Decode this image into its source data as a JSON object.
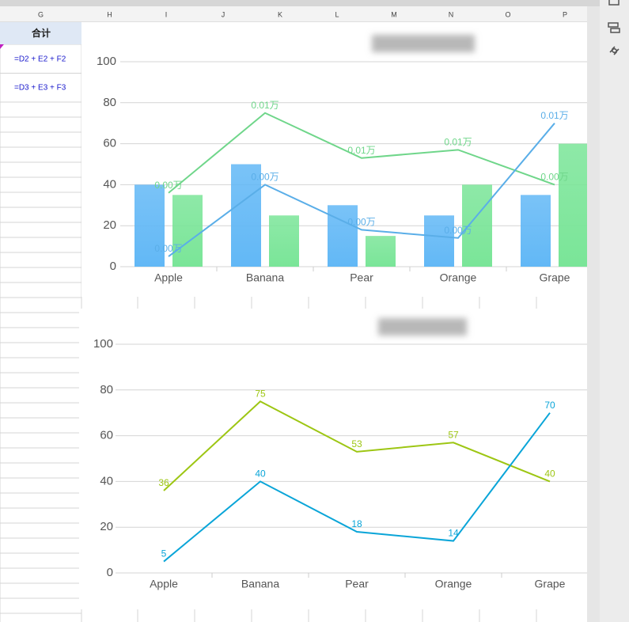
{
  "spreadsheet": {
    "columns": [
      "G",
      "H",
      "I",
      "J",
      "K",
      "L",
      "M",
      "N",
      "O",
      "P"
    ],
    "cells": [
      "合计",
      "=D2 + E2 + F2",
      "=D3 + E3 + F3"
    ]
  },
  "chart_data": [
    {
      "type": "bar",
      "categories": [
        "Apple",
        "Banana",
        "Pear",
        "Orange",
        "Grape"
      ],
      "ylim": [
        0,
        100
      ],
      "yticks": [
        0,
        20,
        40,
        60,
        80,
        100
      ],
      "grid": true,
      "series": [
        {
          "type": "bar",
          "color": "#62b8f6",
          "values": [
            40,
            50,
            30,
            25,
            35
          ]
        },
        {
          "type": "bar",
          "color": "#7ae598",
          "values": [
            35,
            25,
            15,
            40,
            60
          ]
        },
        {
          "type": "line",
          "color": "#6fd68a",
          "values": [
            36,
            75,
            53,
            57,
            40
          ],
          "value_labels": [
            "0.00万",
            "0.01万",
            "0.01万",
            "0.01万",
            "0.00万"
          ]
        },
        {
          "type": "line",
          "color": "#5aaee8",
          "values": [
            5,
            40,
            18,
            14,
            70
          ],
          "value_labels": [
            "0.00万",
            "0.00万",
            "0.00万",
            "0.00万",
            "0.01万"
          ]
        }
      ]
    },
    {
      "type": "line",
      "categories": [
        "Apple",
        "Banana",
        "Pear",
        "Orange",
        "Grape"
      ],
      "ylim": [
        0,
        100
      ],
      "yticks": [
        0,
        20,
        40,
        60,
        80,
        100
      ],
      "grid": true,
      "series": [
        {
          "color": "#9dc613",
          "values": [
            36,
            75,
            53,
            57,
            40
          ]
        },
        {
          "color": "#0aa5d8",
          "values": [
            5,
            40,
            18,
            14,
            70
          ]
        }
      ]
    }
  ]
}
